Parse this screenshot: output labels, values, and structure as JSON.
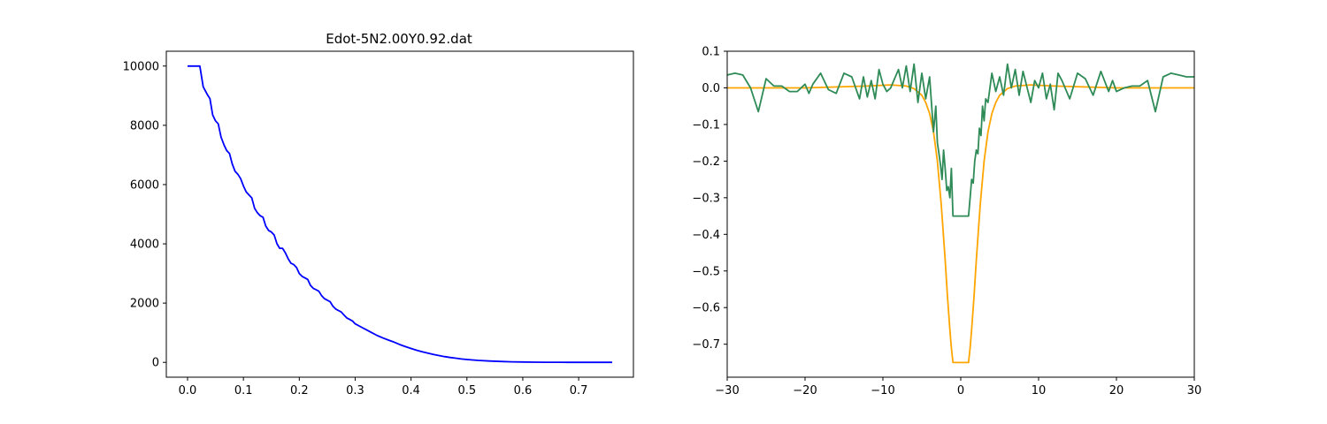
{
  "chart_data": [
    {
      "type": "line",
      "title": "Edot-5N2.00Y0.92.dat",
      "xlabel": "",
      "ylabel": "",
      "xlim": [
        -0.038,
        0.798
      ],
      "ylim": [
        -500,
        10500
      ],
      "x_ticks": [
        0.0,
        0.1,
        0.2,
        0.3,
        0.4,
        0.5,
        0.6,
        0.7
      ],
      "x_tick_labels": [
        "0.0",
        "0.1",
        "0.2",
        "0.3",
        "0.4",
        "0.5",
        "0.6",
        "0.7"
      ],
      "y_ticks": [
        0,
        2000,
        4000,
        6000,
        8000,
        10000
      ],
      "y_tick_labels": [
        "0",
        "2000",
        "4000",
        "6000",
        "8000",
        "10000"
      ],
      "grid": false,
      "series": [
        {
          "color": "#0000ff",
          "x": [
            0.0,
            0.022,
            0.028,
            0.035,
            0.04,
            0.045,
            0.05,
            0.055,
            0.06,
            0.065,
            0.07,
            0.075,
            0.08,
            0.085,
            0.09,
            0.095,
            0.1,
            0.105,
            0.11,
            0.115,
            0.12,
            0.125,
            0.13,
            0.135,
            0.14,
            0.145,
            0.15,
            0.155,
            0.16,
            0.165,
            0.17,
            0.175,
            0.18,
            0.185,
            0.19,
            0.195,
            0.2,
            0.205,
            0.21,
            0.215,
            0.22,
            0.225,
            0.23,
            0.235,
            0.24,
            0.245,
            0.25,
            0.255,
            0.26,
            0.265,
            0.27,
            0.275,
            0.28,
            0.285,
            0.29,
            0.295,
            0.3,
            0.31,
            0.32,
            0.33,
            0.34,
            0.35,
            0.36,
            0.37,
            0.38,
            0.39,
            0.4,
            0.41,
            0.42,
            0.43,
            0.44,
            0.45,
            0.46,
            0.47,
            0.48,
            0.49,
            0.5,
            0.52,
            0.54,
            0.56,
            0.58,
            0.6,
            0.62,
            0.64,
            0.66,
            0.68,
            0.7,
            0.73,
            0.76
          ],
          "y": [
            10000,
            10000,
            9300,
            9050,
            8900,
            8350,
            8150,
            8050,
            7600,
            7350,
            7150,
            7050,
            6700,
            6450,
            6350,
            6200,
            5950,
            5750,
            5650,
            5550,
            5200,
            5050,
            4950,
            4900,
            4600,
            4450,
            4400,
            4300,
            4000,
            3850,
            3850,
            3700,
            3500,
            3350,
            3300,
            3200,
            3000,
            2900,
            2850,
            2800,
            2600,
            2500,
            2450,
            2400,
            2250,
            2150,
            2100,
            2050,
            1900,
            1800,
            1750,
            1700,
            1600,
            1500,
            1450,
            1400,
            1300,
            1200,
            1100,
            1000,
            900,
            820,
            750,
            680,
            600,
            530,
            470,
            410,
            360,
            310,
            270,
            230,
            195,
            165,
            140,
            115,
            95,
            65,
            45,
            30,
            20,
            12,
            8,
            5,
            3,
            2,
            1,
            0,
            0
          ]
        }
      ]
    },
    {
      "type": "line",
      "title": "",
      "xlabel": "",
      "ylabel": "",
      "xlim": [
        -30.0,
        30.0
      ],
      "ylim": [
        -0.79,
        0.1
      ],
      "x_ticks": [
        -30,
        -20,
        -10,
        0,
        10,
        20,
        30
      ],
      "x_tick_labels": [
        "−30",
        "−20",
        "−10",
        "0",
        "10",
        "20",
        "30"
      ],
      "y_ticks": [
        0.1,
        0.0,
        -0.1,
        -0.2,
        -0.3,
        -0.4,
        -0.5,
        -0.6,
        -0.7
      ],
      "y_tick_labels": [
        "0.1",
        "0.0",
        "−0.1",
        "−0.2",
        "−0.3",
        "−0.4",
        "−0.5",
        "−0.6",
        "−0.7"
      ],
      "grid": false,
      "series": [
        {
          "color": "#ffa500",
          "x": [
            -30,
            -20,
            -12,
            -9,
            -7,
            -6,
            -5,
            -4.5,
            -4,
            -3.5,
            -3,
            -2.5,
            -2,
            -1.7,
            -1.4,
            -1.2,
            -1,
            1,
            1.2,
            1.4,
            1.7,
            2,
            2.5,
            3,
            3.5,
            4,
            4.5,
            5,
            6,
            7,
            9,
            12,
            20,
            30
          ],
          "y": [
            0.0,
            0.0,
            0.005,
            0.008,
            0.005,
            -0.002,
            -0.02,
            -0.04,
            -0.07,
            -0.12,
            -0.2,
            -0.32,
            -0.47,
            -0.57,
            -0.66,
            -0.71,
            -0.75,
            -0.75,
            -0.71,
            -0.66,
            -0.57,
            -0.47,
            -0.32,
            -0.2,
            -0.12,
            -0.07,
            -0.04,
            -0.02,
            -0.002,
            0.005,
            0.008,
            0.005,
            0.0,
            0.0
          ]
        },
        {
          "color": "#2e8b57",
          "x": [
            -30,
            -29,
            -28,
            -27,
            -26,
            -25,
            -24,
            -23,
            -22,
            -21,
            -20,
            -19.5,
            -19,
            -18,
            -17,
            -16,
            -15,
            -14,
            -13,
            -12.5,
            -12,
            -11.5,
            -11,
            -10.5,
            -10,
            -9.5,
            -9,
            -8,
            -7.5,
            -7,
            -6.5,
            -6,
            -5.5,
            -5,
            -4.5,
            -4,
            -3.5,
            -3.2,
            -3,
            -2.8,
            -2.6,
            -2.4,
            -2.2,
            -2,
            -1.8,
            -1.6,
            -1.4,
            -1.2,
            -1.0,
            -0.8,
            0.8,
            1.0,
            1.2,
            1.4,
            1.6,
            1.8,
            2.0,
            2.2,
            2.4,
            2.6,
            2.8,
            3.0,
            3.2,
            3.5,
            4,
            4.5,
            5,
            5.5,
            6,
            6.5,
            7,
            7.5,
            8,
            9,
            9.5,
            10,
            10.5,
            11,
            11.5,
            12,
            12.5,
            13,
            14,
            15,
            16,
            17,
            18,
            19,
            19.5,
            20,
            21,
            22,
            23,
            24,
            25,
            26,
            27,
            28,
            29,
            30
          ],
          "y": [
            0.035,
            0.04,
            0.035,
            0.0,
            -0.065,
            0.025,
            0.005,
            0.005,
            -0.01,
            -0.01,
            0.01,
            -0.015,
            0.01,
            0.04,
            -0.005,
            -0.015,
            0.04,
            0.03,
            -0.03,
            0.03,
            -0.025,
            0.02,
            -0.03,
            0.05,
            0.01,
            -0.01,
            0.0,
            0.05,
            0.0,
            0.06,
            -0.01,
            0.065,
            -0.04,
            0.04,
            -0.03,
            0.03,
            -0.12,
            -0.05,
            -0.15,
            -0.18,
            -0.21,
            -0.25,
            -0.17,
            -0.22,
            -0.28,
            -0.27,
            -0.3,
            -0.22,
            -0.35,
            -0.35,
            -0.35,
            -0.35,
            -0.3,
            -0.25,
            -0.26,
            -0.2,
            -0.17,
            -0.18,
            -0.11,
            -0.13,
            -0.05,
            -0.09,
            -0.03,
            -0.04,
            0.04,
            -0.01,
            0.03,
            -0.02,
            0.065,
            0.0,
            0.05,
            -0.02,
            0.045,
            -0.04,
            0.02,
            0.0,
            0.04,
            -0.03,
            0.01,
            -0.06,
            0.04,
            0.02,
            -0.03,
            0.04,
            0.025,
            -0.02,
            0.045,
            -0.01,
            0.02,
            -0.01,
            0.0,
            0.005,
            0.005,
            0.02,
            -0.065,
            0.03,
            0.04,
            0.035,
            0.03,
            0.03
          ]
        }
      ]
    }
  ]
}
